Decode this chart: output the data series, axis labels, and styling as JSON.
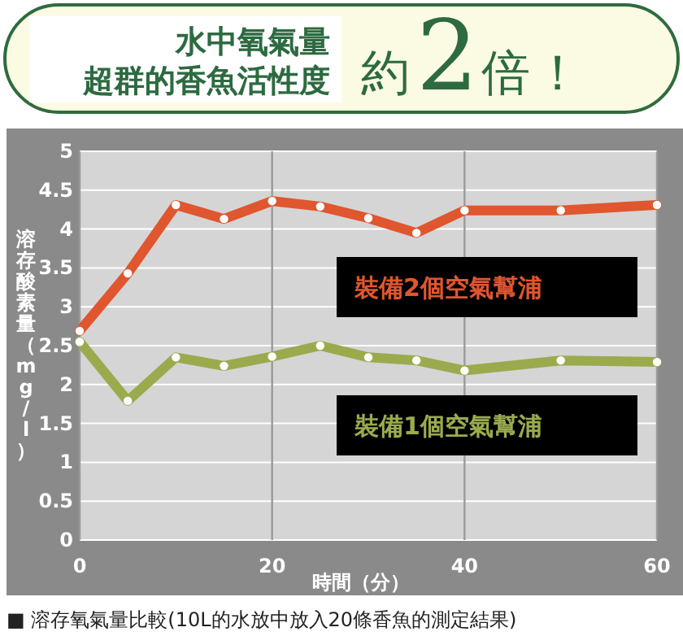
{
  "chart_data": {
    "type": "line",
    "title": "水中氧氣量",
    "subtitle": "超群的香魚活性度",
    "xlabel": "時間（分）",
    "ylabel": "溶存酸素量（mg/l）",
    "annotations": [
      "約2倍！",
      "■ 溶存氧氣量比較(10L的水放中放入20條香魚的測定結果)"
    ],
    "x": [
      0,
      5,
      10,
      15,
      20,
      25,
      30,
      35,
      40,
      50,
      60
    ],
    "series": [
      {
        "name": "裝備2個空氣幫浦",
        "color": "#e0562e",
        "values": [
          2.69,
          3.43,
          4.31,
          4.13,
          4.36,
          4.29,
          4.14,
          3.95,
          4.24,
          4.24,
          4.31
        ]
      },
      {
        "name": "裝備1個空氣幫浦",
        "color": "#9aab4e",
        "values": [
          2.55,
          1.79,
          2.35,
          2.24,
          2.36,
          2.5,
          2.35,
          2.31,
          2.18,
          2.31,
          2.29
        ]
      }
    ],
    "xlim": [
      0,
      60
    ],
    "ylim": [
      0,
      5
    ],
    "xticks": [
      0,
      20,
      40,
      60
    ],
    "yticks": [
      0,
      0.5,
      1,
      1.5,
      2,
      2.5,
      3,
      3.5,
      4,
      4.5,
      5
    ],
    "grid": true,
    "legend": "right",
    "marker": "circle"
  }
}
